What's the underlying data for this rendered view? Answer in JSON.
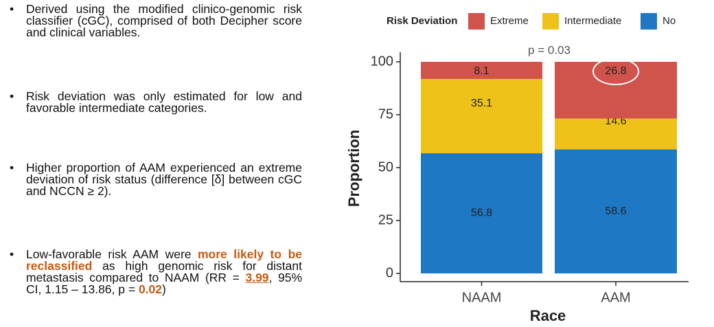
{
  "bullets": [
    [
      {
        "text": "Derived using the modified clinico-genomic risk classifier (cGC), comprised of both Decipher score and clinical variables."
      }
    ],
    [
      {
        "text": "Risk deviation was only estimated for low and favorable intermediate categories."
      }
    ],
    [
      {
        "text": "Higher proportion of AAM experienced an extreme deviation of risk status (difference [δ] between cGC and NCCN ≥ 2)."
      }
    ],
    [
      {
        "text": "Low-favorable risk AAM were "
      },
      {
        "text": "more likely to be reclassified",
        "color": "#c55a11",
        "bold": true
      },
      {
        "text": " as high genomic risk for distant metastasis compared to NAAM (RR = "
      },
      {
        "text": "3.99",
        "color": "#c55a11",
        "bold": true,
        "underline": true
      },
      {
        "text": ", 95% CI, 1.15 – 13.86, p = "
      },
      {
        "text": "0.02",
        "color": "#c55a11",
        "bold": true
      },
      {
        "text": ")"
      }
    ]
  ],
  "chart_data": {
    "type": "stacked_bar",
    "annotation": "p = 0.03",
    "x_label": "Race",
    "y_label": "Proportion",
    "legend_title": "Risk Deviation",
    "categories": [
      "NAAM",
      "AAM"
    ],
    "series": [
      {
        "name": "No",
        "color": "#1f78c4",
        "values": [
          56.8,
          58.6
        ]
      },
      {
        "name": "Intermediate",
        "color": "#efc21a",
        "values": [
          35.1,
          14.6
        ]
      },
      {
        "name": "Extreme",
        "color": "#d0544c",
        "values": [
          8.1,
          26.8
        ]
      }
    ],
    "ylim": [
      0,
      100
    ],
    "yticks": [
      0,
      25,
      50,
      75,
      100
    ],
    "grid": false
  }
}
